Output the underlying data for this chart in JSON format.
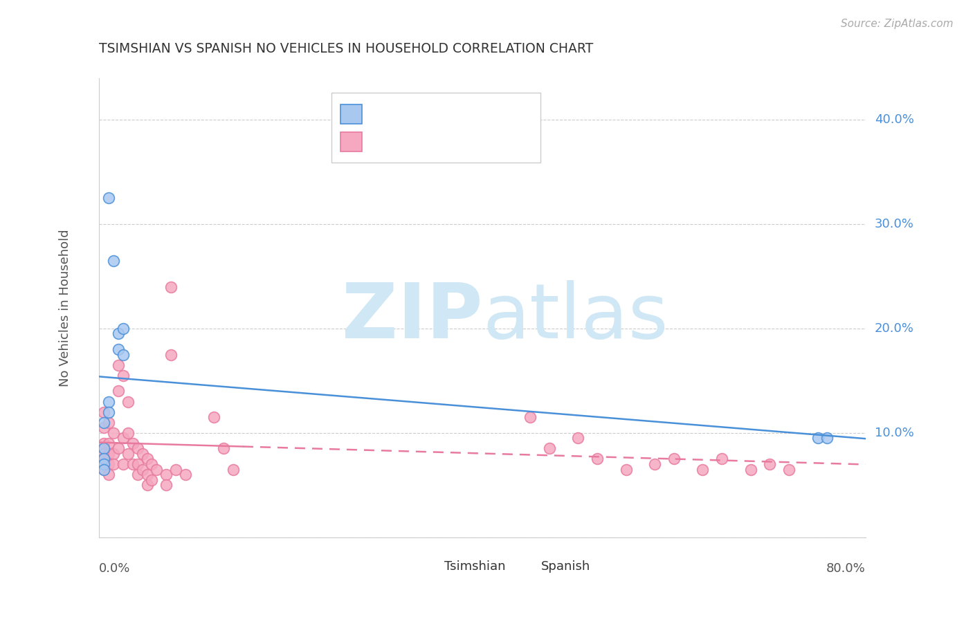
{
  "title": "TSIMSHIAN VS SPANISH NO VEHICLES IN HOUSEHOLD CORRELATION CHART",
  "source": "Source: ZipAtlas.com",
  "ylabel": "No Vehicles in Household",
  "ytick_values": [
    0.0,
    0.1,
    0.2,
    0.3,
    0.4
  ],
  "ytick_right_labels": [
    "10.0%",
    "20.0%",
    "30.0%",
    "40.0%"
  ],
  "ytick_right_values": [
    0.1,
    0.2,
    0.3,
    0.4
  ],
  "xlim": [
    0.0,
    0.8
  ],
  "ylim": [
    0.0,
    0.44
  ],
  "blue_color": "#a8c8f0",
  "pink_color": "#f5a8c0",
  "blue_line_color": "#4a90d9",
  "pink_line_color": "#e87a9f",
  "watermark_color": "#d0e8f5",
  "background_color": "#ffffff",
  "grid_color": "#cccccc",
  "tsimshian_x": [
    0.01,
    0.015,
    0.02,
    0.02,
    0.025,
    0.025,
    0.01,
    0.01,
    0.005,
    0.005,
    0.005,
    0.005,
    0.005,
    0.75,
    0.76
  ],
  "tsimshian_y": [
    0.325,
    0.265,
    0.195,
    0.18,
    0.2,
    0.175,
    0.13,
    0.12,
    0.11,
    0.085,
    0.075,
    0.07,
    0.065,
    0.095,
    0.095
  ],
  "spanish_x": [
    0.005,
    0.005,
    0.005,
    0.005,
    0.005,
    0.005,
    0.01,
    0.01,
    0.01,
    0.01,
    0.01,
    0.015,
    0.015,
    0.015,
    0.02,
    0.02,
    0.02,
    0.025,
    0.025,
    0.025,
    0.03,
    0.03,
    0.03,
    0.035,
    0.035,
    0.04,
    0.04,
    0.04,
    0.045,
    0.045,
    0.05,
    0.05,
    0.05,
    0.055,
    0.055,
    0.06,
    0.07,
    0.07,
    0.075,
    0.075,
    0.08,
    0.09,
    0.12,
    0.13,
    0.14,
    0.45,
    0.47,
    0.5,
    0.52,
    0.55,
    0.58,
    0.6,
    0.63,
    0.65,
    0.68,
    0.7,
    0.72
  ],
  "spanish_y": [
    0.12,
    0.105,
    0.09,
    0.08,
    0.075,
    0.065,
    0.11,
    0.09,
    0.08,
    0.07,
    0.06,
    0.1,
    0.08,
    0.07,
    0.165,
    0.14,
    0.085,
    0.155,
    0.095,
    0.07,
    0.13,
    0.1,
    0.08,
    0.09,
    0.07,
    0.085,
    0.07,
    0.06,
    0.08,
    0.065,
    0.075,
    0.06,
    0.05,
    0.07,
    0.055,
    0.065,
    0.06,
    0.05,
    0.24,
    0.175,
    0.065,
    0.06,
    0.115,
    0.085,
    0.065,
    0.115,
    0.085,
    0.095,
    0.075,
    0.065,
    0.07,
    0.075,
    0.065,
    0.075,
    0.065,
    0.07,
    0.065
  ]
}
